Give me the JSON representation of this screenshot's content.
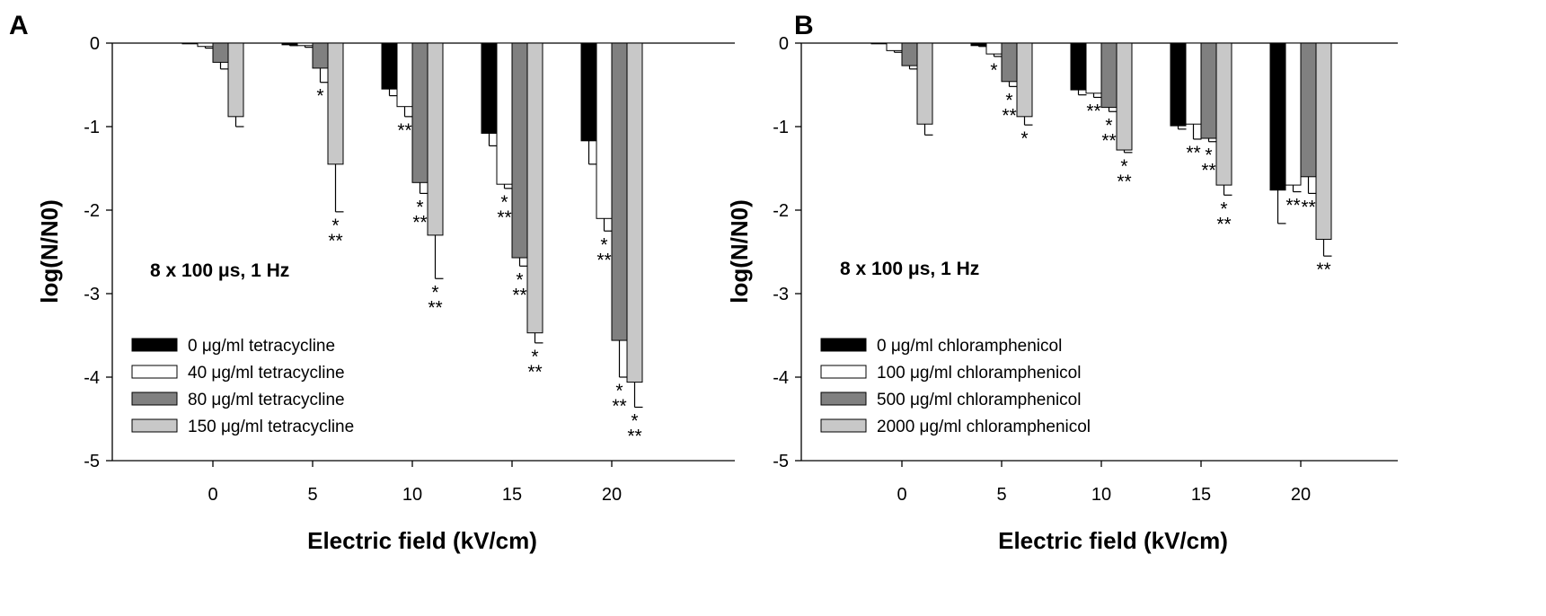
{
  "chart_data": [
    {
      "type": "bar",
      "panel": "A",
      "xlabel": "Electric field (kV/cm)",
      "ylabel": "log(N/N0)",
      "ylim": [
        -5,
        0
      ],
      "yticks": [
        "0",
        "-1",
        "-2",
        "-3",
        "-4",
        "-5"
      ],
      "categories": [
        "0",
        "5",
        "10",
        "15",
        "20"
      ],
      "annotation": "8 x 100 μs, 1 Hz",
      "legend_position": "bottom-left",
      "series": [
        {
          "name": "0 μg/ml tetracycline",
          "color": "#000000",
          "values": [
            0,
            -0.02,
            -0.55,
            -1.08,
            -1.17
          ],
          "errors": [
            0,
            0.01,
            0.08,
            0.15,
            0.28
          ],
          "sig": [
            "",
            "",
            "",
            "",
            ""
          ]
        },
        {
          "name": "40 μg/ml tetracycline",
          "color": "#ffffff",
          "values": [
            -0.04,
            -0.03,
            -0.76,
            -1.69,
            -2.1
          ],
          "errors": [
            0.02,
            0.02,
            0.12,
            0.05,
            0.15
          ],
          "sig": [
            "",
            "",
            "**",
            "*|**",
            "*|**"
          ]
        },
        {
          "name": "80 μg/ml tetracycline",
          "color": "#808080",
          "values": [
            -0.23,
            -0.3,
            -1.67,
            -2.57,
            -3.56
          ],
          "errors": [
            0.08,
            0.17,
            0.13,
            0.1,
            0.44
          ],
          "sig": [
            "",
            "*",
            "*|**",
            "*|**",
            "*|**"
          ]
        },
        {
          "name": "150 μg/ml tetracycline",
          "color": "#c8c8c8",
          "values": [
            -0.88,
            -1.45,
            -2.3,
            -3.47,
            -4.06
          ],
          "errors": [
            0.12,
            0.57,
            0.52,
            0.12,
            0.3
          ],
          "sig": [
            "",
            "*|**",
            "*|**",
            "*|**",
            "*|**"
          ]
        }
      ]
    },
    {
      "type": "bar",
      "panel": "B",
      "xlabel": "Electric field (kV/cm)",
      "ylabel": "log(N/N0)",
      "ylim": [
        -5,
        0
      ],
      "yticks": [
        "0",
        "-1",
        "-2",
        "-3",
        "-4",
        "-5"
      ],
      "categories": [
        "0",
        "5",
        "10",
        "15",
        "20"
      ],
      "annotation": "8 x 100 μs, 1 Hz",
      "legend_position": "bottom-left",
      "series": [
        {
          "name": "0 μg/ml chloramphenicol",
          "color": "#000000",
          "values": [
            0,
            -0.03,
            -0.56,
            -0.99,
            -1.76
          ],
          "errors": [
            0,
            0.01,
            0.06,
            0.04,
            0.4
          ],
          "sig": [
            "",
            "",
            "",
            "",
            ""
          ]
        },
        {
          "name": "100 μg/ml chloramphenicol",
          "color": "#ffffff",
          "values": [
            -0.09,
            -0.13,
            -0.6,
            -0.97,
            -1.7
          ],
          "errors": [
            0.02,
            0.03,
            0.05,
            0.18,
            0.08
          ],
          "sig": [
            "",
            "*",
            "**",
            "**",
            "**"
          ]
        },
        {
          "name": "500 μg/ml chloramphenicol",
          "color": "#808080",
          "values": [
            -0.27,
            -0.46,
            -0.77,
            -1.14,
            -1.6
          ],
          "errors": [
            0.04,
            0.06,
            0.05,
            0.04,
            0.2
          ],
          "sig": [
            "",
            "*|**",
            "*|**",
            "*|**",
            "**"
          ]
        },
        {
          "name": "2000 μg/ml chloramphenicol",
          "color": "#c8c8c8",
          "values": [
            -0.97,
            -0.88,
            -1.28,
            -1.7,
            -2.35
          ],
          "errors": [
            0.13,
            0.1,
            0.03,
            0.12,
            0.2
          ],
          "sig": [
            "",
            "*",
            "*|**",
            "*|**",
            "**"
          ]
        }
      ]
    }
  ]
}
